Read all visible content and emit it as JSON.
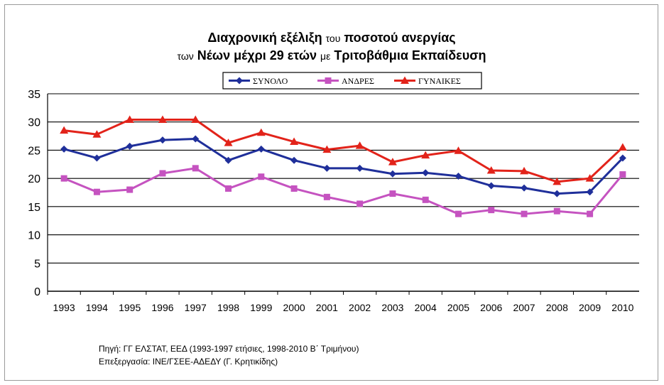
{
  "chart_data": {
    "type": "line",
    "title_parts": [
      {
        "text": "Διαχρονική εξέλιξη ",
        "small": false
      },
      {
        "text": "του",
        "small": true
      },
      {
        "text": " ποσοτού ανεργίας",
        "small": false
      }
    ],
    "subtitle_parts": [
      {
        "text": "των",
        "small": true
      },
      {
        "text": " Νέων μέχρι 29 ετών ",
        "small": false
      },
      {
        "text": "με",
        "small": true
      },
      {
        "text": " Τριτοβάθμια Εκπαίδευση",
        "small": false
      }
    ],
    "categories": [
      "1993",
      "1994",
      "1995",
      "1996",
      "1997",
      "1998",
      "1999",
      "2000",
      "2001",
      "2002",
      "2003",
      "2004",
      "2005",
      "2006",
      "2007",
      "2008",
      "2009",
      "2010"
    ],
    "ylim": [
      0,
      35
    ],
    "yticks": [
      0,
      5,
      10,
      15,
      20,
      25,
      30,
      35
    ],
    "grid": true,
    "legend_position": "top-center",
    "series": [
      {
        "name": "ΣΥΝΟΛΟ",
        "color": "#1f2f9a",
        "marker": "diamond",
        "values": [
          25.2,
          23.6,
          25.7,
          26.8,
          27.0,
          23.2,
          25.2,
          23.2,
          21.8,
          21.8,
          20.8,
          21.0,
          20.4,
          18.7,
          18.3,
          17.3,
          17.6,
          23.6
        ]
      },
      {
        "name": "ΑΝΔΡΕΣ",
        "color": "#c553c0",
        "marker": "square",
        "values": [
          20.0,
          17.6,
          18.0,
          20.9,
          21.8,
          18.2,
          20.3,
          18.2,
          16.7,
          15.5,
          17.3,
          16.2,
          13.7,
          14.4,
          13.7,
          14.2,
          13.7,
          20.7
        ]
      },
      {
        "name": "ΓΥΝΑΙΚΕΣ",
        "color": "#e2231a",
        "marker": "triangle",
        "values": [
          28.5,
          27.8,
          30.4,
          30.4,
          30.4,
          26.3,
          28.1,
          26.5,
          25.1,
          25.8,
          22.9,
          24.1,
          24.9,
          21.4,
          21.3,
          19.4,
          20.0,
          25.5
        ]
      }
    ]
  },
  "source": {
    "line1": "Πηγή: ΓΓ ΕΛΣΤΑΤ, ΕΕΔ (1993-1997 ετήσιες, 1998-2010 Β΄ Τριμήνου)",
    "line2": "Επεξεργασία: ΙΝΕ/ΓΣΕΕ-ΑΔΕΔΥ (Γ. Κρητικίδης)"
  }
}
